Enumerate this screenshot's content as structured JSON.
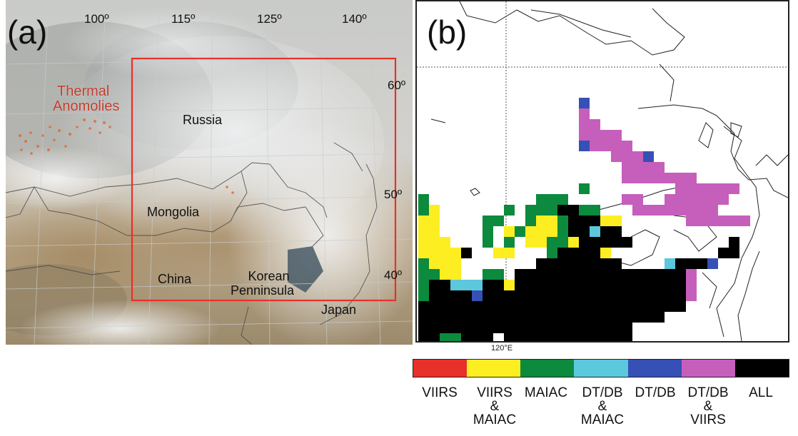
{
  "panel_a": {
    "label": "(a)",
    "thermal_label_line1": "Thermal",
    "thermal_label_line2": "Anomolies",
    "top_lon_labels": [
      "100º",
      "115º",
      "125º",
      "140º"
    ],
    "lat_labels": [
      "60º",
      "50º",
      "40º"
    ],
    "places": {
      "russia": "Russia",
      "mongolia": "Mongolia",
      "china": "China",
      "korea_line1": "Korean",
      "korea_line2": "Penninsula",
      "japan": "Japan"
    },
    "box_color": "#e8302a"
  },
  "panel_b": {
    "label": "(b)",
    "lon_tick": "120°E",
    "colors": {
      "viirs": "#e8302a",
      "viirs_maiac": "#fcee21",
      "maiac": "#0c8a3d",
      "dtdb_maiac": "#5bc8dc",
      "dtdb": "#3650b5",
      "dtdb_viirs": "#c55fbb",
      "all": "#000000"
    }
  },
  "legend": {
    "items": [
      {
        "l1": "VIIRS",
        "l2": "",
        "l3": "",
        "color": "#e8302a"
      },
      {
        "l1": "VIIRS",
        "l2": "&",
        "l3": "MAIAC",
        "color": "#fcee21"
      },
      {
        "l1": "MAIAC",
        "l2": "",
        "l3": "",
        "color": "#0c8a3d"
      },
      {
        "l1": "DT/DB",
        "l2": "&",
        "l3": "MAIAC",
        "color": "#5bc8dc"
      },
      {
        "l1": "DT/DB",
        "l2": "",
        "l3": "",
        "color": "#3650b5"
      },
      {
        "l1": "DT/DB",
        "l2": "&",
        "l3": "VIIRS",
        "color": "#c55fbb"
      },
      {
        "l1": "ALL",
        "l2": "",
        "l3": "",
        "color": "#000000"
      }
    ]
  }
}
